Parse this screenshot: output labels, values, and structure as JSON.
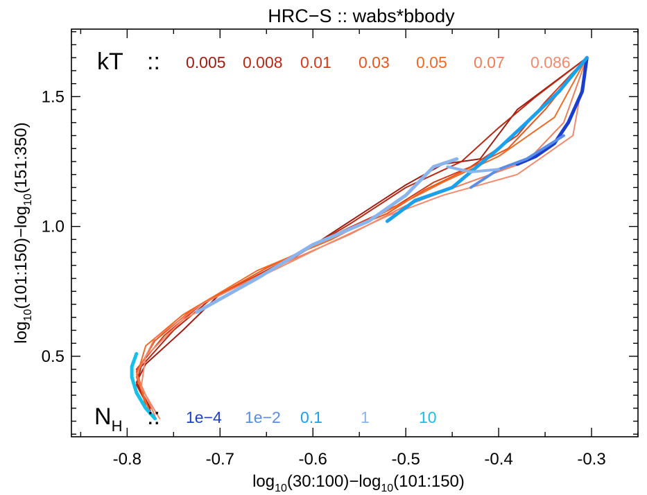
{
  "chart_data": {
    "type": "line",
    "title": "HRC−S :: wabs*bbody",
    "xlabel": {
      "pre": "log",
      "sub1": "10",
      "mid": "(30:100)−log",
      "sub2": "10",
      "post": "(101:150)"
    },
    "ylabel": {
      "pre": "log",
      "sub1": "10",
      "mid": "(101:150)−log",
      "sub2": "10",
      "post": "(151:350)"
    },
    "xlim": [
      -0.86,
      -0.25
    ],
    "ylim": [
      0.19,
      1.76
    ],
    "x_ticks": [
      "-0.8",
      "-0.7",
      "-0.6",
      "-0.5",
      "-0.4",
      "-0.3"
    ],
    "x_tick_values": [
      -0.8,
      -0.7,
      -0.6,
      -0.5,
      -0.4,
      -0.3
    ],
    "y_ticks": [
      "0.5",
      "1.0",
      "1.5"
    ],
    "y_tick_values": [
      0.5,
      1.0,
      1.5
    ],
    "grid": false,
    "legend_kT": {
      "label": "kT",
      "sep": "::",
      "entries": [
        {
          "label": "0.005",
          "color": "#a01c10"
        },
        {
          "label": "0.008",
          "color": "#b82814"
        },
        {
          "label": "0.01",
          "color": "#d63a16"
        },
        {
          "label": "0.03",
          "color": "#e8561a"
        },
        {
          "label": "0.05",
          "color": "#f06a24"
        },
        {
          "label": "0.07",
          "color": "#f07c5c"
        },
        {
          "label": "0.086",
          "color": "#f48a6c"
        }
      ]
    },
    "legend_NH": {
      "label": "N",
      "label_sub": "H",
      "sep": "::",
      "entries": [
        {
          "label": "1e−4",
          "color": "#1a3fd0"
        },
        {
          "label": "1e−2",
          "color": "#5a8ee6"
        },
        {
          "label": "0.1",
          "color": "#1aa0ec"
        },
        {
          "label": "1",
          "color": "#8ab4ee"
        },
        {
          "label": "10",
          "color": "#18c0e8"
        }
      ]
    },
    "series": [
      {
        "group": "kT",
        "color": "#a01c10",
        "width": 2,
        "points": [
          [
            -0.305,
            1.65
          ],
          [
            -0.38,
            1.45
          ],
          [
            -0.42,
            1.26
          ],
          [
            -0.46,
            1.24
          ],
          [
            -0.5,
            1.16
          ],
          [
            -0.56,
            1.02
          ],
          [
            -0.62,
            0.88
          ],
          [
            -0.7,
            0.74
          ],
          [
            -0.74,
            0.6
          ],
          [
            -0.78,
            0.47
          ],
          [
            -0.79,
            0.4
          ],
          [
            -0.775,
            0.3
          ]
        ]
      },
      {
        "group": "kT",
        "color": "#b82814",
        "width": 2,
        "points": [
          [
            -0.305,
            1.65
          ],
          [
            -0.36,
            1.5
          ],
          [
            -0.4,
            1.38
          ],
          [
            -0.44,
            1.25
          ],
          [
            -0.5,
            1.15
          ],
          [
            -0.56,
            1.01
          ],
          [
            -0.63,
            0.86
          ],
          [
            -0.71,
            0.72
          ],
          [
            -0.75,
            0.6
          ],
          [
            -0.785,
            0.46
          ],
          [
            -0.79,
            0.39
          ],
          [
            -0.775,
            0.29
          ]
        ]
      },
      {
        "group": "kT",
        "color": "#d63a16",
        "width": 2,
        "points": [
          [
            -0.305,
            1.65
          ],
          [
            -0.35,
            1.48
          ],
          [
            -0.38,
            1.35
          ],
          [
            -0.43,
            1.23
          ],
          [
            -0.47,
            1.17
          ],
          [
            -0.51,
            1.08
          ],
          [
            -0.57,
            0.98
          ],
          [
            -0.64,
            0.85
          ],
          [
            -0.72,
            0.7
          ],
          [
            -0.76,
            0.58
          ],
          [
            -0.79,
            0.45
          ],
          [
            -0.78,
            0.32
          ]
        ]
      },
      {
        "group": "kT",
        "color": "#e8561a",
        "width": 2,
        "points": [
          [
            -0.305,
            1.65
          ],
          [
            -0.35,
            1.45
          ],
          [
            -0.39,
            1.3
          ],
          [
            -0.44,
            1.21
          ],
          [
            -0.48,
            1.14
          ],
          [
            -0.52,
            1.05
          ],
          [
            -0.58,
            0.96
          ],
          [
            -0.65,
            0.84
          ],
          [
            -0.73,
            0.68
          ],
          [
            -0.77,
            0.56
          ],
          [
            -0.79,
            0.44
          ],
          [
            -0.78,
            0.31
          ]
        ]
      },
      {
        "group": "kT",
        "color": "#f06a24",
        "width": 2,
        "points": [
          [
            -0.305,
            1.65
          ],
          [
            -0.34,
            1.42
          ],
          [
            -0.4,
            1.27
          ],
          [
            -0.46,
            1.17
          ],
          [
            -0.52,
            1.06
          ],
          [
            -0.58,
            0.95
          ],
          [
            -0.66,
            0.83
          ],
          [
            -0.74,
            0.66
          ],
          [
            -0.78,
            0.54
          ],
          [
            -0.79,
            0.42
          ],
          [
            -0.775,
            0.28
          ]
        ]
      },
      {
        "group": "kT",
        "color": "#f07c5c",
        "width": 2,
        "points": [
          [
            -0.305,
            1.65
          ],
          [
            -0.33,
            1.4
          ],
          [
            -0.37,
            1.25
          ],
          [
            -0.44,
            1.16
          ],
          [
            -0.5,
            1.08
          ],
          [
            -0.56,
            0.97
          ],
          [
            -0.63,
            0.86
          ],
          [
            -0.72,
            0.7
          ],
          [
            -0.77,
            0.57
          ],
          [
            -0.79,
            0.43
          ],
          [
            -0.77,
            0.27
          ]
        ]
      },
      {
        "group": "kT",
        "color": "#f48a6c",
        "width": 2,
        "points": [
          [
            -0.305,
            1.65
          ],
          [
            -0.32,
            1.35
          ],
          [
            -0.38,
            1.2
          ],
          [
            -0.46,
            1.12
          ],
          [
            -0.52,
            1.04
          ],
          [
            -0.58,
            0.94
          ],
          [
            -0.66,
            0.8
          ],
          [
            -0.74,
            0.64
          ],
          [
            -0.78,
            0.5
          ],
          [
            -0.785,
            0.38
          ],
          [
            -0.765,
            0.26
          ]
        ]
      },
      {
        "group": "NH",
        "color": "#1a3fd0",
        "width": 5,
        "points": [
          [
            -0.305,
            1.65
          ],
          [
            -0.31,
            1.52
          ],
          [
            -0.325,
            1.4
          ],
          [
            -0.34,
            1.32
          ],
          [
            -0.36,
            1.27
          ],
          [
            -0.38,
            1.24
          ]
        ]
      },
      {
        "group": "NH",
        "color": "#5a8ee6",
        "width": 4,
        "points": [
          [
            -0.33,
            1.35
          ],
          [
            -0.37,
            1.26
          ],
          [
            -0.4,
            1.22
          ],
          [
            -0.43,
            1.15
          ]
        ]
      },
      {
        "group": "NH",
        "color": "#1aa0ec",
        "width": 5,
        "points": [
          [
            -0.305,
            1.65
          ],
          [
            -0.335,
            1.52
          ],
          [
            -0.37,
            1.4
          ],
          [
            -0.4,
            1.3
          ],
          [
            -0.45,
            1.15
          ],
          [
            -0.49,
            1.1
          ],
          [
            -0.52,
            1.02
          ]
        ]
      },
      {
        "group": "NH",
        "color": "#8ab4ee",
        "width": 5,
        "points": [
          [
            -0.445,
            1.26
          ],
          [
            -0.47,
            1.23
          ],
          [
            -0.5,
            1.12
          ],
          [
            -0.54,
            1.02
          ],
          [
            -0.6,
            0.93
          ],
          [
            -0.66,
            0.8
          ],
          [
            -0.725,
            0.67
          ]
        ]
      },
      {
        "group": "NH",
        "color": "#8ab4ee",
        "width": 4,
        "points": [
          [
            -0.455,
            1.23
          ],
          [
            -0.43,
            1.21
          ],
          [
            -0.4,
            1.22
          ]
        ]
      },
      {
        "group": "NH",
        "color": "#18c0e8",
        "width": 5,
        "points": [
          [
            -0.79,
            0.51
          ],
          [
            -0.795,
            0.46
          ],
          [
            -0.795,
            0.42
          ],
          [
            -0.79,
            0.36
          ],
          [
            -0.78,
            0.3
          ],
          [
            -0.77,
            0.26
          ]
        ]
      }
    ]
  }
}
